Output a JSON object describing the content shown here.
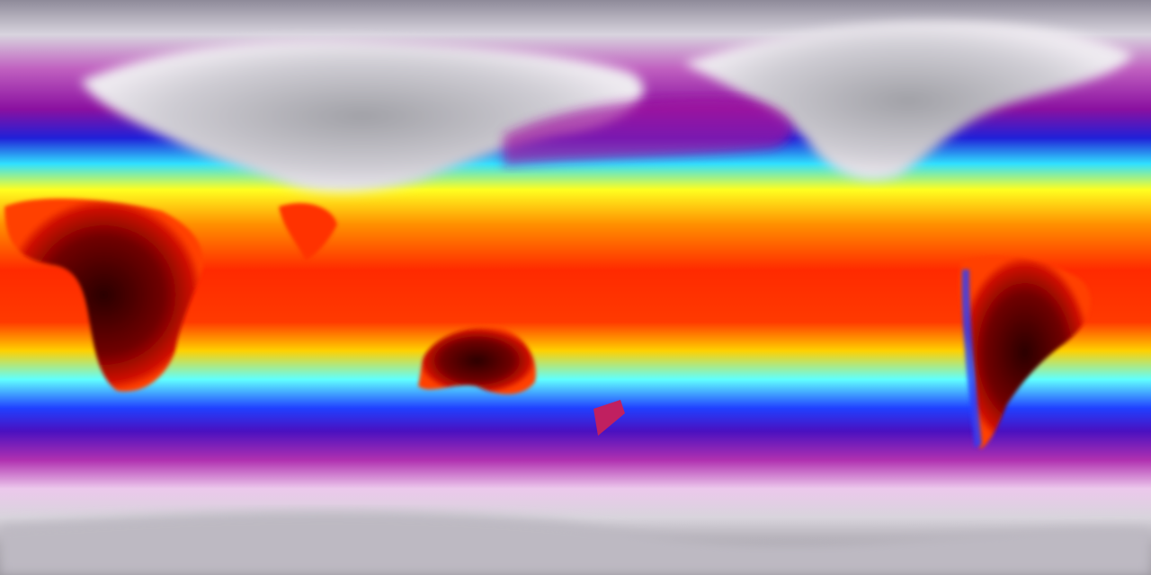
{
  "map": {
    "projection": "equirectangular",
    "colormap": [
      "#8e8a99",
      "#e6e2ea",
      "#a01aa0",
      "#1e1ed8",
      "#2ee6ff",
      "#ffff1e",
      "#ff8a00",
      "#ff2200",
      "#3a0000"
    ],
    "colors": {
      "polar": "#a8a4ac",
      "snow": "#e6e2ea",
      "magenta": "#a01aa0",
      "blue": "#1e1ed8",
      "cyan": "#2ee6ff",
      "yellow": "#ffff1e",
      "orange": "#ff8a00",
      "red": "#ff2200",
      "hot_land": "#3a0000"
    }
  }
}
